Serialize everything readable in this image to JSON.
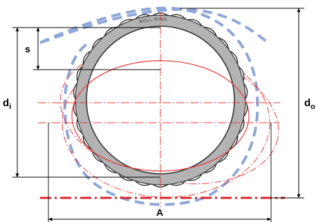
{
  "labels": {
    "s": "s",
    "di_main": "d",
    "di_sub": "i",
    "do_main": "d",
    "do_sub": "o",
    "A": "A",
    "ring_brand": "ROLL-RING"
  },
  "colors": {
    "ring_gray": "#b3b3b3",
    "dimension_black": "#000000",
    "ellipse_red": "#e63a3a",
    "ground_red": "#d9232b",
    "dashed_blue": "#8fa7d8",
    "background": "#ffffff"
  }
}
